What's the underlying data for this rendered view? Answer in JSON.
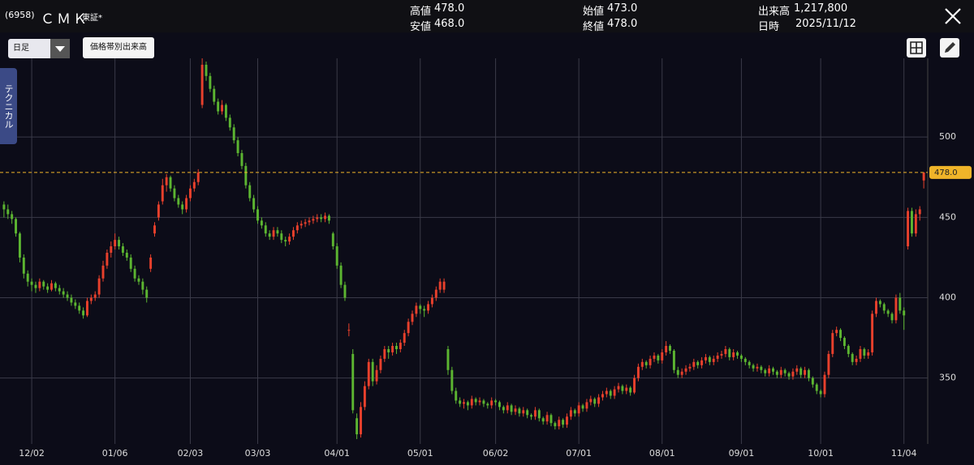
{
  "header": {
    "code": "(6958)",
    "name": "ＣＭＫ",
    "market": "東証*",
    "high_label": "高値",
    "high": "478.0",
    "low_label": "安値",
    "low": "468.0",
    "open_label": "始値",
    "open": "473.0",
    "close_label": "終値",
    "close": "478.0",
    "volume_label": "出来高",
    "volume": "1,217,800",
    "date_label": "日時",
    "date": "2025/11/12"
  },
  "toolbar": {
    "period": "日足",
    "volume_profile": "価格帯別出来高",
    "technical_tab": "テクニカル"
  },
  "chart_data": {
    "type": "candlestick",
    "up_color": "#e8402c",
    "down_color": "#5cb531",
    "grid": true,
    "xlim": [
      -1,
      233
    ],
    "ylim": [
      309,
      549
    ],
    "yticks": [
      350,
      400,
      450,
      500
    ],
    "xticks": [
      {
        "value": 7,
        "label": "12/02"
      },
      {
        "value": 28,
        "label": "01/06"
      },
      {
        "value": 47,
        "label": "02/03"
      },
      {
        "value": 64,
        "label": "03/03"
      },
      {
        "value": 84,
        "label": "04/01"
      },
      {
        "value": 105,
        "label": "05/01"
      },
      {
        "value": 124,
        "label": "06/02"
      },
      {
        "value": 145,
        "label": "07/01"
      },
      {
        "value": 166,
        "label": "08/01"
      },
      {
        "value": 186,
        "label": "09/01"
      },
      {
        "value": 206,
        "label": "10/01"
      },
      {
        "value": 227,
        "label": "11/04"
      }
    ],
    "last_price": {
      "value": 478,
      "label": "478.0"
    },
    "ohlc": [
      [
        458,
        460,
        450,
        455
      ],
      [
        455,
        458,
        449,
        452
      ],
      [
        452,
        454,
        446,
        449
      ],
      [
        449,
        450,
        438,
        440
      ],
      [
        440,
        441,
        422,
        425
      ],
      [
        425,
        427,
        412,
        415
      ],
      [
        415,
        417,
        407,
        410
      ],
      [
        410,
        412,
        404,
        408
      ],
      [
        408,
        410,
        403,
        406
      ],
      [
        406,
        412,
        404,
        410
      ],
      [
        410,
        411,
        405,
        407
      ],
      [
        407,
        409,
        403,
        405
      ],
      [
        405,
        411,
        404,
        409
      ],
      [
        409,
        410,
        404,
        406
      ],
      [
        406,
        408,
        402,
        404
      ],
      [
        404,
        406,
        400,
        402
      ],
      [
        402,
        404,
        398,
        400
      ],
      [
        400,
        402,
        395,
        397
      ],
      [
        397,
        399,
        393,
        395
      ],
      [
        395,
        397,
        390,
        392
      ],
      [
        392,
        394,
        387,
        389
      ],
      [
        389,
        400,
        388,
        398
      ],
      [
        398,
        402,
        396,
        400
      ],
      [
        400,
        404,
        398,
        402
      ],
      [
        402,
        414,
        400,
        412
      ],
      [
        412,
        423,
        410,
        420
      ],
      [
        420,
        430,
        418,
        428
      ],
      [
        428,
        435,
        425,
        432
      ],
      [
        432,
        440,
        430,
        436
      ],
      [
        436,
        438,
        430,
        432
      ],
      [
        432,
        434,
        426,
        428
      ],
      [
        428,
        430,
        423,
        425
      ],
      [
        425,
        427,
        416,
        418
      ],
      [
        418,
        420,
        410,
        412
      ],
      [
        412,
        414,
        408,
        410
      ],
      [
        410,
        412,
        402,
        405
      ],
      [
        405,
        407,
        397,
        400
      ],
      [
        418,
        427,
        416,
        425
      ],
      [
        440,
        447,
        438,
        445
      ],
      [
        450,
        460,
        448,
        458
      ],
      [
        460,
        474,
        458,
        470
      ],
      [
        470,
        477,
        466,
        475
      ],
      [
        475,
        476,
        466,
        468
      ],
      [
        468,
        470,
        460,
        462
      ],
      [
        462,
        464,
        456,
        458
      ],
      [
        458,
        460,
        452,
        455
      ],
      [
        455,
        464,
        453,
        462
      ],
      [
        462,
        470,
        460,
        468
      ],
      [
        468,
        474,
        466,
        472
      ],
      [
        472,
        480,
        470,
        478
      ],
      [
        520,
        549,
        518,
        545
      ],
      [
        545,
        547,
        535,
        538
      ],
      [
        538,
        540,
        528,
        530
      ],
      [
        530,
        532,
        520,
        522
      ],
      [
        522,
        524,
        514,
        516
      ],
      [
        516,
        523,
        514,
        520
      ],
      [
        520,
        521,
        510,
        512
      ],
      [
        512,
        514,
        504,
        506
      ],
      [
        506,
        508,
        496,
        498
      ],
      [
        498,
        500,
        488,
        490
      ],
      [
        490,
        492,
        480,
        482
      ],
      [
        482,
        484,
        468,
        470
      ],
      [
        470,
        472,
        460,
        462
      ],
      [
        462,
        464,
        453,
        455
      ],
      [
        455,
        457,
        446,
        448
      ],
      [
        448,
        450,
        443,
        445
      ],
      [
        445,
        447,
        438,
        440
      ],
      [
        440,
        442,
        436,
        438
      ],
      [
        438,
        444,
        436,
        442
      ],
      [
        442,
        444,
        438,
        440
      ],
      [
        440,
        442,
        434,
        436
      ],
      [
        436,
        438,
        432,
        435
      ],
      [
        435,
        440,
        433,
        438
      ],
      [
        438,
        444,
        436,
        442
      ],
      [
        442,
        447,
        440,
        445
      ],
      [
        445,
        448,
        443,
        446
      ],
      [
        446,
        449,
        444,
        447
      ],
      [
        447,
        450,
        445,
        448
      ],
      [
        448,
        451,
        446,
        449
      ],
      [
        449,
        452,
        447,
        450
      ],
      [
        450,
        452,
        447,
        449
      ],
      [
        449,
        453,
        447,
        451
      ],
      [
        451,
        452,
        446,
        448
      ],
      [
        440,
        441,
        430,
        432
      ],
      [
        432,
        434,
        418,
        420
      ],
      [
        420,
        422,
        406,
        408
      ],
      [
        408,
        410,
        398,
        400
      ],
      [
        380,
        384,
        376,
        380
      ],
      [
        365,
        368,
        328,
        330
      ],
      [
        325,
        328,
        312,
        315
      ],
      [
        315,
        335,
        313,
        332
      ],
      [
        332,
        348,
        330,
        345
      ],
      [
        345,
        362,
        343,
        360
      ],
      [
        360,
        362,
        345,
        348
      ],
      [
        348,
        358,
        346,
        355
      ],
      [
        355,
        364,
        353,
        362
      ],
      [
        362,
        370,
        360,
        368
      ],
      [
        368,
        370,
        362,
        366
      ],
      [
        366,
        372,
        364,
        370
      ],
      [
        370,
        372,
        365,
        368
      ],
      [
        368,
        374,
        366,
        372
      ],
      [
        372,
        380,
        370,
        378
      ],
      [
        378,
        387,
        376,
        385
      ],
      [
        385,
        392,
        383,
        390
      ],
      [
        390,
        397,
        388,
        395
      ],
      [
        395,
        396,
        390,
        393
      ],
      [
        393,
        395,
        388,
        392
      ],
      [
        392,
        398,
        390,
        396
      ],
      [
        396,
        402,
        394,
        400
      ],
      [
        400,
        407,
        398,
        405
      ],
      [
        405,
        412,
        403,
        410
      ],
      [
        405,
        412,
        403,
        410
      ],
      [
        368,
        370,
        352,
        355
      ],
      [
        355,
        357,
        340,
        342
      ],
      [
        342,
        344,
        334,
        336
      ],
      [
        336,
        338,
        332,
        334
      ],
      [
        334,
        337,
        331,
        335
      ],
      [
        335,
        336,
        330,
        333
      ],
      [
        333,
        339,
        331,
        337
      ],
      [
        337,
        338,
        333,
        335
      ],
      [
        335,
        338,
        333,
        336
      ],
      [
        336,
        337,
        332,
        334
      ],
      [
        334,
        335,
        331,
        333
      ],
      [
        333,
        338,
        331,
        336
      ],
      [
        336,
        337,
        333,
        335
      ],
      [
        335,
        336,
        330,
        332
      ],
      [
        332,
        333,
        328,
        330
      ],
      [
        330,
        335,
        328,
        333
      ],
      [
        333,
        334,
        327,
        329
      ],
      [
        329,
        333,
        327,
        331
      ],
      [
        331,
        332,
        326,
        328
      ],
      [
        328,
        332,
        326,
        330
      ],
      [
        330,
        331,
        325,
        327
      ],
      [
        327,
        328,
        324,
        326
      ],
      [
        326,
        332,
        324,
        330
      ],
      [
        330,
        331,
        323,
        325
      ],
      [
        325,
        326,
        321,
        323
      ],
      [
        323,
        329,
        321,
        327
      ],
      [
        327,
        328,
        320,
        322
      ],
      [
        322,
        323,
        318,
        320
      ],
      [
        320,
        326,
        318,
        324
      ],
      [
        324,
        325,
        319,
        321
      ],
      [
        321,
        328,
        319,
        326
      ],
      [
        326,
        332,
        324,
        330
      ],
      [
        330,
        331,
        326,
        328
      ],
      [
        328,
        335,
        326,
        333
      ],
      [
        333,
        334,
        329,
        331
      ],
      [
        331,
        337,
        329,
        335
      ],
      [
        335,
        339,
        333,
        337
      ],
      [
        337,
        338,
        332,
        334
      ],
      [
        334,
        340,
        332,
        338
      ],
      [
        338,
        342,
        336,
        340
      ],
      [
        340,
        344,
        338,
        342
      ],
      [
        342,
        343,
        337,
        339
      ],
      [
        339,
        345,
        337,
        343
      ],
      [
        343,
        347,
        341,
        345
      ],
      [
        345,
        346,
        340,
        342
      ],
      [
        342,
        346,
        340,
        344
      ],
      [
        344,
        345,
        339,
        341
      ],
      [
        341,
        352,
        340,
        350
      ],
      [
        350,
        359,
        348,
        357
      ],
      [
        357,
        362,
        355,
        360
      ],
      [
        360,
        361,
        356,
        358
      ],
      [
        358,
        364,
        356,
        362
      ],
      [
        362,
        366,
        360,
        364
      ],
      [
        364,
        365,
        359,
        361
      ],
      [
        361,
        368,
        359,
        366
      ],
      [
        366,
        373,
        364,
        370
      ],
      [
        370,
        371,
        365,
        367
      ],
      [
        367,
        368,
        353,
        355
      ],
      [
        355,
        357,
        350,
        352
      ],
      [
        352,
        356,
        350,
        354
      ],
      [
        354,
        358,
        352,
        356
      ],
      [
        356,
        359,
        354,
        357
      ],
      [
        357,
        362,
        355,
        360
      ],
      [
        360,
        361,
        356,
        358
      ],
      [
        358,
        363,
        356,
        361
      ],
      [
        361,
        365,
        359,
        363
      ],
      [
        363,
        364,
        358,
        360
      ],
      [
        360,
        364,
        358,
        362
      ],
      [
        362,
        366,
        360,
        364
      ],
      [
        364,
        367,
        362,
        365
      ],
      [
        365,
        370,
        363,
        368
      ],
      [
        368,
        369,
        361,
        363
      ],
      [
        363,
        368,
        361,
        366
      ],
      [
        366,
        367,
        362,
        364
      ],
      [
        364,
        365,
        360,
        362
      ],
      [
        362,
        363,
        358,
        360
      ],
      [
        360,
        361,
        356,
        358
      ],
      [
        358,
        359,
        354,
        356
      ],
      [
        356,
        359,
        354,
        357
      ],
      [
        357,
        358,
        353,
        355
      ],
      [
        355,
        356,
        351,
        353
      ],
      [
        353,
        358,
        351,
        356
      ],
      [
        356,
        357,
        352,
        354
      ],
      [
        354,
        355,
        350,
        352
      ],
      [
        352,
        357,
        350,
        355
      ],
      [
        355,
        356,
        351,
        353
      ],
      [
        353,
        354,
        349,
        351
      ],
      [
        351,
        356,
        349,
        354
      ],
      [
        354,
        358,
        352,
        356
      ],
      [
        356,
        357,
        350,
        352
      ],
      [
        352,
        357,
        350,
        355
      ],
      [
        355,
        356,
        348,
        350
      ],
      [
        350,
        351,
        344,
        346
      ],
      [
        346,
        347,
        340,
        342
      ],
      [
        342,
        343,
        338,
        340
      ],
      [
        340,
        354,
        338,
        352
      ],
      [
        352,
        367,
        350,
        365
      ],
      [
        365,
        380,
        363,
        378
      ],
      [
        378,
        382,
        376,
        380
      ],
      [
        380,
        381,
        373,
        375
      ],
      [
        375,
        376,
        368,
        370
      ],
      [
        370,
        371,
        363,
        365
      ],
      [
        365,
        366,
        358,
        360
      ],
      [
        360,
        364,
        358,
        362
      ],
      [
        362,
        370,
        360,
        368
      ],
      [
        368,
        369,
        362,
        364
      ],
      [
        364,
        368,
        362,
        366
      ],
      [
        366,
        392,
        364,
        390
      ],
      [
        390,
        400,
        388,
        398
      ],
      [
        398,
        399,
        394,
        396
      ],
      [
        396,
        397,
        390,
        392
      ],
      [
        392,
        393,
        388,
        390
      ],
      [
        390,
        391,
        384,
        386
      ],
      [
        386,
        402,
        384,
        400
      ],
      [
        400,
        403,
        390,
        392
      ],
      [
        392,
        394,
        380,
        389
      ],
      [
        432,
        456,
        430,
        454
      ],
      [
        454,
        456,
        438,
        440
      ],
      [
        440,
        455,
        438,
        452
      ],
      [
        452,
        457,
        448,
        455
      ],
      [
        473,
        478,
        468,
        478
      ]
    ]
  }
}
